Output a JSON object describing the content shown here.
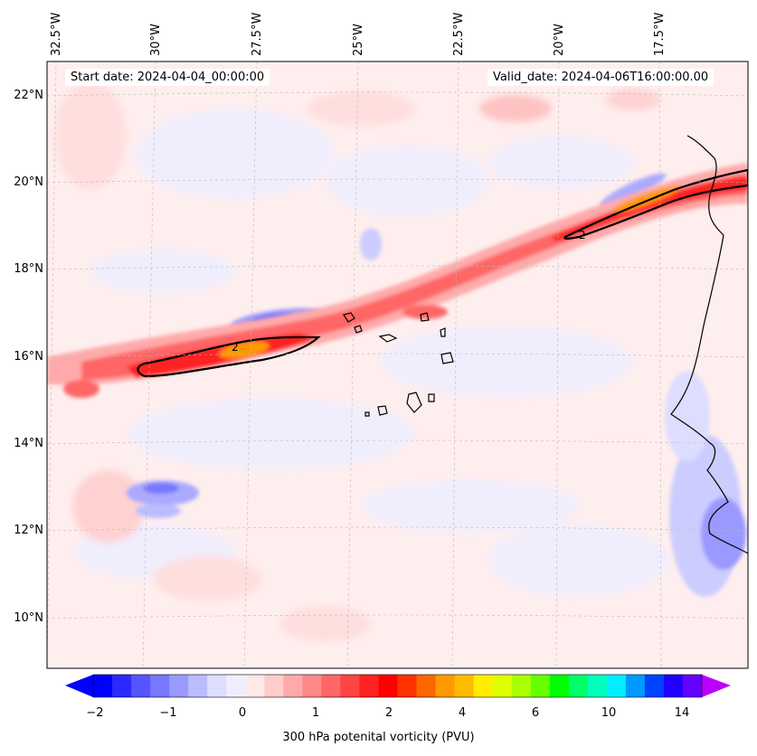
{
  "map": {
    "start_date": "Start date: 2024-04-04_00:00:00",
    "valid_date": "Valid_date: 2024-04-06T16:00:00.00",
    "contour_label": "2",
    "lon_labels": [
      "32.5°W",
      "30°W",
      "27.5°W",
      "25°W",
      "22.5°W",
      "20°W",
      "17.5°W"
    ],
    "lat_labels": [
      "22°N",
      "20°N",
      "18°N",
      "16°N",
      "14°N",
      "12°N",
      "10°N"
    ],
    "field": "300 hPa potential vorticity",
    "units": "PVU"
  },
  "colorbar": {
    "title": "300 hPa potenital vorticity (PVU)",
    "tick_labels": [
      "−2",
      "−1",
      "0",
      "1",
      "2",
      "4",
      "6",
      "10",
      "14"
    ],
    "colors": [
      "#0000ff",
      "#2a2aff",
      "#5555ff",
      "#7777ff",
      "#9999ff",
      "#bbbbff",
      "#ddddff",
      "#eeeeff",
      "#ffe8e8",
      "#ffcccc",
      "#ffaaaa",
      "#ff8888",
      "#ff6666",
      "#ff4444",
      "#ff2222",
      "#ff0000",
      "#ff3300",
      "#ff6600",
      "#ff9900",
      "#ffbb00",
      "#ffee00",
      "#ddff00",
      "#aaff00",
      "#66ff00",
      "#00ff00",
      "#00ff66",
      "#00ffbb",
      "#00eeff",
      "#0099ff",
      "#0044ff",
      "#2200ff",
      "#6600ff"
    ],
    "extend_low_color": "#0000ff",
    "extend_high_color": "#bb00ff"
  }
}
